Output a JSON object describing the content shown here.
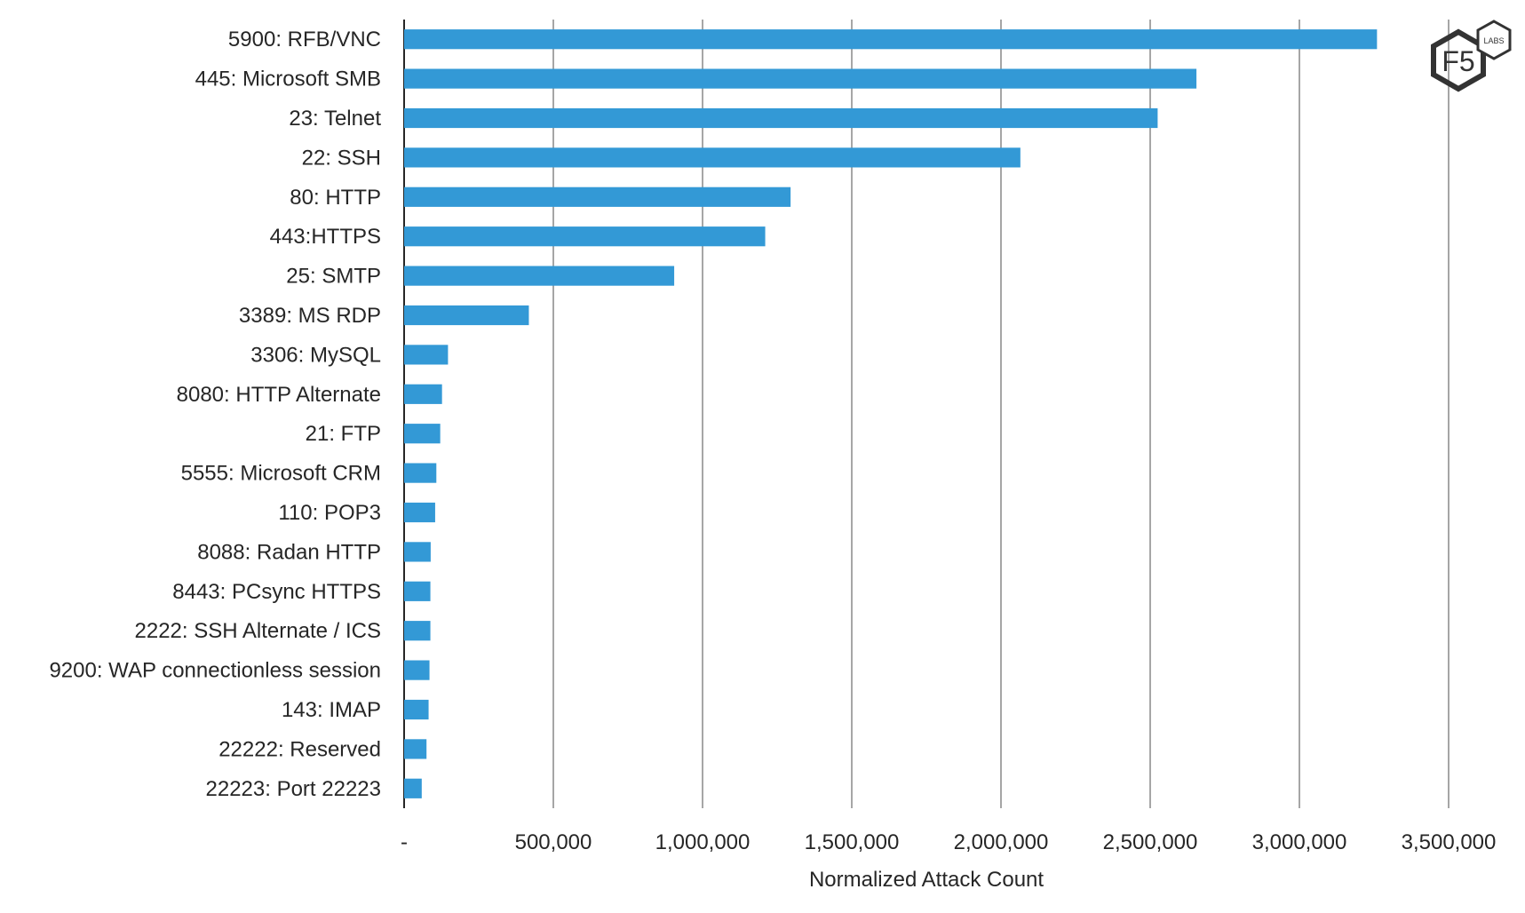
{
  "chart_data": {
    "type": "bar",
    "orientation": "horizontal",
    "title": "",
    "xlabel": "Normalized Attack Count",
    "ylabel": "",
    "xlim": [
      0,
      3500000
    ],
    "x_ticks": [
      0,
      500000,
      1000000,
      1500000,
      2000000,
      2500000,
      3000000,
      3500000
    ],
    "x_tick_labels": [
      "-",
      "500,000",
      "1,000,000",
      "1,500,000",
      "2,000,000",
      "2,500,000",
      "3,000,000",
      "3,500,000"
    ],
    "grid": "vertical",
    "bar_color": "#3399d6",
    "categories": [
      "5900: RFB/VNC",
      "445: Microsoft SMB",
      "23: Telnet",
      "22: SSH",
      "80: HTTP",
      "443:HTTPS",
      "25: SMTP",
      "3389: MS RDP",
      "3306: MySQL",
      "8080: HTTP Alternate",
      "21: FTP",
      "5555: Microsoft CRM",
      "110: POP3",
      "8088: Radan HTTP",
      "8443: PCsync HTTPS",
      "2222: SSH Alternate / ICS",
      "9200: WAP connectionless session",
      "143: IMAP",
      "22222: Reserved",
      "22223: Port 22223"
    ],
    "values": [
      3260000,
      2655000,
      2525000,
      2065000,
      1295000,
      1210000,
      905000,
      418000,
      147000,
      127000,
      121000,
      108000,
      104000,
      89000,
      88000,
      88000,
      85000,
      82000,
      75000,
      59000
    ]
  },
  "logo": {
    "text": "F5",
    "badge": "LABS"
  }
}
